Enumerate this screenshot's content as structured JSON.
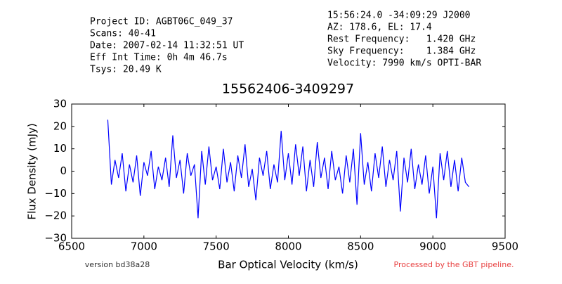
{
  "chart_data": {
    "type": "line",
    "header_left": [
      "Project ID: AGBT06C_049_37",
      "Scans: 40-41",
      "Date: 2007-02-14 11:32:51 UT",
      "Eff Int Time: 0h 4m 46.7s",
      "Tsys: 20.49 K"
    ],
    "header_right": [
      "15:56:24.0 -34:09:29 J2000",
      "AZ: 178.6, EL: 17.4",
      "Rest Frequency:   1.420 GHz",
      "Sky Frequency:    1.384 GHz",
      "Velocity: 7990 km/s OPTI-BAR"
    ],
    "title": "15562406-3409297",
    "xlabel": "Bar Optical Velocity (km/s)",
    "ylabel": "Flux Density (mJy)",
    "version": "version bd38a28",
    "pipeline_note": "Processed by the GBT pipeline.",
    "color": "#0000ff",
    "xlim": [
      6500,
      9500
    ],
    "xticks": [
      6500,
      7000,
      7500,
      8000,
      8500,
      9000,
      9500
    ],
    "ylim": [
      -30,
      30
    ],
    "yticks": [
      {
        "value": -30,
        "label": "−30"
      },
      {
        "value": -20,
        "label": "−20"
      },
      {
        "value": -10,
        "label": "−10"
      },
      0,
      10,
      20,
      30
    ],
    "x": [
      6750,
      6775,
      6800,
      6825,
      6850,
      6875,
      6900,
      6925,
      6950,
      6975,
      7000,
      7025,
      7050,
      7075,
      7100,
      7125,
      7150,
      7175,
      7200,
      7225,
      7250,
      7275,
      7300,
      7325,
      7350,
      7375,
      7400,
      7425,
      7450,
      7475,
      7500,
      7525,
      7550,
      7575,
      7600,
      7625,
      7650,
      7675,
      7700,
      7725,
      7750,
      7775,
      7800,
      7825,
      7850,
      7875,
      7900,
      7925,
      7950,
      7975,
      8000,
      8025,
      8050,
      8075,
      8100,
      8125,
      8150,
      8175,
      8200,
      8225,
      8250,
      8275,
      8300,
      8325,
      8350,
      8375,
      8400,
      8425,
      8450,
      8475,
      8500,
      8525,
      8550,
      8575,
      8600,
      8625,
      8650,
      8675,
      8700,
      8725,
      8750,
      8775,
      8800,
      8825,
      8850,
      8875,
      8900,
      8925,
      8950,
      8975,
      9000,
      9025,
      9050,
      9075,
      9100,
      9125,
      9150,
      9175,
      9200,
      9225,
      9250
    ],
    "values": [
      23,
      -6,
      5,
      -3,
      8,
      -9,
      3,
      -5,
      7,
      -11,
      4,
      -2,
      9,
      -8,
      2,
      -4,
      6,
      -7,
      16,
      -3,
      5,
      -10,
      8,
      -2,
      3,
      -21,
      9,
      -6,
      11,
      -4,
      2,
      -8,
      10,
      -5,
      4,
      -9,
      7,
      -3,
      12,
      -7,
      1,
      -13,
      6,
      -2,
      9,
      -8,
      3,
      -5,
      18,
      -4,
      8,
      -6,
      12,
      -2,
      11,
      -9,
      5,
      -7,
      13,
      -3,
      6,
      -8,
      9,
      -4,
      2,
      -10,
      7,
      -5,
      10,
      -15,
      17,
      -6,
      4,
      -9,
      8,
      -3,
      11,
      -7,
      5,
      -4,
      9,
      -18,
      6,
      -5,
      10,
      -8,
      3,
      -6,
      7,
      -10,
      2,
      -21,
      8,
      -4,
      9,
      -7,
      5,
      -9,
      6,
      -5,
      -7
    ]
  }
}
